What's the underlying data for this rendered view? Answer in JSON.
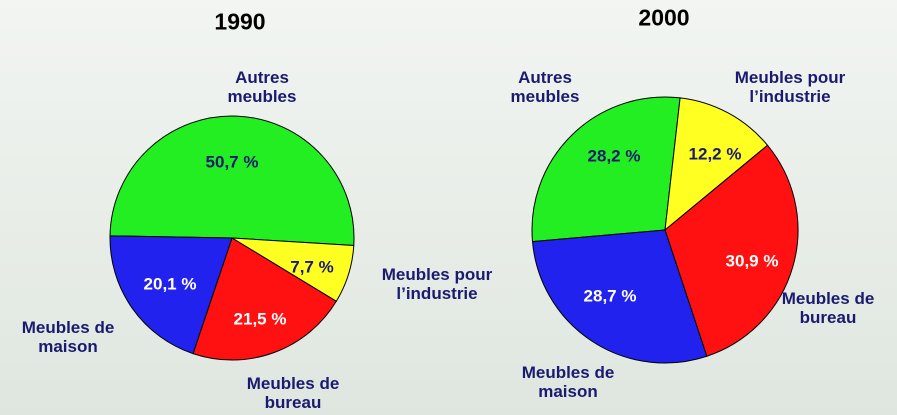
{
  "chart_data": [
    {
      "type": "pie",
      "title": "1990",
      "categories": [
        "Autres meubles",
        "Meubles pour l’industrie",
        "Meubles de bureau",
        "Meubles de maison"
      ],
      "values": [
        50.7,
        7.7,
        21.5,
        20.1
      ],
      "value_labels": [
        "50,7 %",
        "7,7 %",
        "21,5 %",
        "20,1 %"
      ],
      "colors": [
        "#22ee22",
        "#ffff22",
        "#ff1111",
        "#2222ee"
      ]
    },
    {
      "type": "pie",
      "title": "2000",
      "categories": [
        "Autres meubles",
        "Meubles pour l’industrie",
        "Meubles de bureau",
        "Meubles de maison"
      ],
      "values": [
        28.2,
        12.2,
        30.9,
        28.7
      ],
      "value_labels": [
        "28,2 %",
        "12,2 %",
        "30,9 %",
        "28,7 %"
      ],
      "colors": [
        "#22ee22",
        "#ffff22",
        "#ff1111",
        "#2222ee"
      ]
    }
  ]
}
